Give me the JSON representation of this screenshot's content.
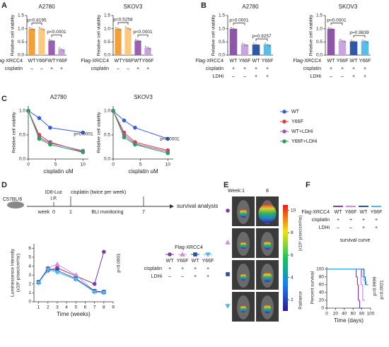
{
  "panels": [
    "A",
    "B",
    "C",
    "D",
    "E",
    "F"
  ],
  "chart_data": [
    {
      "type": "bar",
      "title": "A2780",
      "y_label": "Relative cell viability",
      "category_label": "Flag-XRCC4",
      "categories": [
        "WT",
        "Y66F",
        "WT",
        "Y66F"
      ],
      "values": [
        1.0,
        1.0,
        0.55,
        0.22
      ],
      "colors": [
        "#f2a13a",
        "#f8c97e",
        "#9a5fb3",
        "#c8a3da"
      ],
      "conditions": [
        {
          "label": "cisplatin",
          "values": [
            "–",
            "–",
            "+",
            "+"
          ]
        }
      ],
      "annotations": [
        "p=0.8195",
        "p<0.0001"
      ],
      "ylim": [
        0,
        1.5
      ],
      "yticks": [
        {
          "value": 0,
          "label": "0.0"
        },
        {
          "value": 0.5,
          "label": "0.5"
        },
        {
          "value": 1,
          "label": "1.0"
        },
        {
          "value": 1.5,
          "label": "1.5"
        }
      ]
    },
    {
      "type": "bar",
      "title": "SKOV3",
      "y_label": "Relative cell viability",
      "category_label": "Flag-XRCC4",
      "categories": [
        "WT",
        "Y66F",
        "WT",
        "Y66F"
      ],
      "values": [
        1.0,
        1.02,
        0.55,
        0.28
      ],
      "colors": [
        "#f2a13a",
        "#f8c97e",
        "#9a5fb3",
        "#c8a3da"
      ],
      "conditions": [
        {
          "label": "cisplatin",
          "values": [
            "–",
            "–",
            "+",
            "+"
          ]
        }
      ],
      "annotations": [
        "p=0.5258",
        "p<0.0001"
      ],
      "ylim": [
        0,
        1.5
      ],
      "yticks": [
        {
          "value": 0,
          "label": "0.0"
        },
        {
          "value": 0.5,
          "label": "0.5"
        },
        {
          "value": 1,
          "label": "1.0"
        },
        {
          "value": 1.5,
          "label": "1.5"
        }
      ]
    },
    {
      "type": "bar",
      "title": "A2780",
      "y_label": "Relative cell viability",
      "category_label": "Flag-XRCC4",
      "categories": [
        "WT",
        "Y66F",
        "WT",
        "Y66F"
      ],
      "values": [
        1.0,
        0.4,
        0.4,
        0.4
      ],
      "colors": [
        "#8e56a8",
        "#c9a6dc",
        "#2f58a6",
        "#59bde9"
      ],
      "conditions": [
        {
          "label": "cisplatin",
          "values": [
            "+",
            "+",
            "+",
            "+"
          ]
        },
        {
          "label": "LDHi",
          "values": [
            "–",
            "–",
            "+",
            "+"
          ]
        }
      ],
      "annotations": [
        "p=0.0001",
        "p=0.9257"
      ],
      "ylim": [
        0,
        1.5
      ],
      "yticks": [
        {
          "value": 0,
          "label": "0.0"
        },
        {
          "value": 0.5,
          "label": "0.5"
        },
        {
          "value": 1,
          "label": "1.0"
        },
        {
          "value": 1.5,
          "label": "1.5"
        }
      ]
    },
    {
      "type": "bar",
      "title": "SKOV3",
      "y_label": "Relative cell viability",
      "category_label": "Flag-XRCC4",
      "categories": [
        "WT",
        "Y66F",
        "WT",
        "Y66F"
      ],
      "values": [
        1.0,
        0.55,
        0.52,
        0.53
      ],
      "colors": [
        "#8e56a8",
        "#c9a6dc",
        "#2f58a6",
        "#59bde9"
      ],
      "conditions": [
        {
          "label": "cisplatin",
          "values": [
            "+",
            "+",
            "+",
            "+"
          ]
        },
        {
          "label": "LDHi",
          "values": [
            "–",
            "–",
            "+",
            "+"
          ]
        }
      ],
      "annotations": [
        "p<0.0001",
        "p=0.9839"
      ],
      "ylim": [
        0,
        1.5
      ],
      "yticks": [
        {
          "value": 0,
          "label": "0.0"
        },
        {
          "value": 0.5,
          "label": "0.5"
        },
        {
          "value": 1,
          "label": "1.0"
        },
        {
          "value": 1.5,
          "label": "1.5"
        }
      ]
    },
    {
      "type": "line",
      "title": "A2780",
      "x_label": "cisplatin uM",
      "y_label": "Relative cell viability",
      "x": [
        0,
        2,
        4,
        10
      ],
      "legend": "right",
      "series": [
        {
          "name": "WT",
          "color": "#3a5fcd",
          "values": [
            1.0,
            0.85,
            0.65,
            0.55
          ]
        },
        {
          "name": "Y66F",
          "color": "#e03c3c",
          "values": [
            1.0,
            0.5,
            0.35,
            0.15
          ]
        },
        {
          "name": "WT+LDHi",
          "color": "#9b59b6",
          "values": [
            1.0,
            0.45,
            0.33,
            0.17
          ]
        },
        {
          "name": "Y66F+LDHi",
          "color": "#2e9e5b",
          "values": [
            1.0,
            0.42,
            0.3,
            0.14
          ]
        }
      ],
      "annotations": [
        "p<0.0001"
      ],
      "xlim": [
        0,
        11
      ],
      "xticks": [
        0,
        5,
        10
      ],
      "ylim": [
        0,
        1.1
      ],
      "yticks": [
        {
          "value": 0,
          "label": "0.0"
        },
        {
          "value": 0.5,
          "label": "0.5"
        },
        {
          "value": 1,
          "label": "1.0"
        }
      ]
    },
    {
      "type": "line",
      "title": "SKOV3",
      "x_label": "cisplatin uM",
      "y_label": "Relative cell viability",
      "x": [
        0,
        2,
        4,
        10
      ],
      "series": [
        {
          "color": "#3a5fcd",
          "values": [
            1.0,
            0.8,
            0.65,
            0.42
          ]
        },
        {
          "color": "#e03c3c",
          "values": [
            1.0,
            0.55,
            0.35,
            0.18
          ]
        },
        {
          "color": "#9b59b6",
          "values": [
            1.0,
            0.5,
            0.32,
            0.15
          ]
        },
        {
          "color": "#2e9e5b",
          "values": [
            1.0,
            0.45,
            0.3,
            0.12
          ]
        }
      ],
      "annotations": [
        "p<0.0001"
      ],
      "xlim": [
        0,
        11
      ],
      "xticks": [
        0,
        5,
        10
      ],
      "ylim": [
        0,
        1.1
      ],
      "yticks": [
        {
          "value": 0,
          "label": "0.0"
        },
        {
          "value": 0.5,
          "label": "0.5"
        },
        {
          "value": 1,
          "label": "1.0"
        }
      ]
    },
    {
      "type": "line",
      "x_label": "Time (weeks)",
      "y_label": [
        "Luminescence Intensity",
        "(x10⁶ p/sec/cm²/sr)"
      ],
      "x": [
        1,
        2,
        3,
        5,
        7,
        8
      ],
      "series": [
        {
          "color": "#7b3f9e",
          "marker": "circle",
          "values": [
            2.2,
            3.5,
            3.8,
            2.9,
            2.0,
            5.6
          ]
        },
        {
          "color": "#d48ad4",
          "marker": "triangle",
          "values": [
            2.2,
            3.8,
            4.2,
            3.0,
            1.2,
            1.1
          ]
        },
        {
          "color": "#2c4fa0",
          "marker": "square",
          "values": [
            2.2,
            3.7,
            3.5,
            2.6,
            1.2,
            1.1
          ]
        },
        {
          "color": "#4fb8e8",
          "marker": "triangle-down",
          "values": [
            2.1,
            3.6,
            3.3,
            2.5,
            1.1,
            1.0
          ]
        }
      ],
      "legend_title": "Flag-XRCC4",
      "legend_categories": [
        "WT",
        "Y66F",
        "WT",
        "Y66F"
      ],
      "conditions": [
        {
          "label": "cisplatin",
          "values": [
            "+",
            "+",
            "+",
            "+"
          ]
        },
        {
          "label": "LDHi",
          "values": [
            "–",
            "–",
            "+",
            "+"
          ]
        }
      ],
      "annotations": [
        "p<0.0001"
      ],
      "xlim": [
        0.5,
        9
      ],
      "xticks": [
        1,
        2,
        3,
        4,
        5,
        6,
        7,
        8,
        9
      ],
      "ylim": [
        0,
        6.5
      ],
      "yticks": [
        0,
        1,
        2,
        3,
        4,
        5,
        6
      ]
    },
    {
      "type": "line",
      "step": true,
      "x_label": "Time (days)",
      "y_label": "Percent survival",
      "category_label": "Flag-XRCC4",
      "categories": [
        "WT",
        "Y66F",
        "WT",
        "Y66F"
      ],
      "conditions": [
        {
          "label": "cisplatin",
          "values": [
            "+",
            "+",
            "+",
            "+"
          ]
        },
        {
          "label": "LDHi",
          "values": [
            "–",
            "–",
            "+",
            "+"
          ]
        }
      ],
      "caption": "survival curve",
      "series": [
        {
          "color": "#7b3f9e",
          "x": [
            0,
            65,
            67,
            70,
            72,
            75
          ],
          "values": [
            100,
            100,
            80,
            60,
            20,
            0
          ]
        },
        {
          "color": "#d48ad4",
          "x": [
            0,
            78,
            82
          ],
          "values": [
            100,
            60,
            20
          ]
        },
        {
          "color": "#2c4fa0",
          "x": [
            0,
            85,
            88
          ],
          "values": [
            100,
            80,
            60
          ]
        },
        {
          "color": "#4fb8e8",
          "x": [
            0,
            80,
            85,
            90
          ],
          "values": [
            100,
            80,
            70,
            60
          ]
        }
      ],
      "annotations": [
        "p=0.9999",
        "p=0.0021"
      ],
      "xlim": [
        0,
        100
      ],
      "xticks": [
        0,
        20,
        40,
        60,
        80,
        100
      ],
      "ylim": [
        0,
        105
      ],
      "yticks": [
        0,
        20,
        40,
        60,
        80,
        100
      ]
    }
  ],
  "schematic": {
    "mouse": "C57BL/6",
    "injection": [
      "ID8-Luc",
      "I.P."
    ],
    "treatment": "cisplatin (twice per week)",
    "week_label": "week",
    "weeks": [
      "0",
      "1",
      "7"
    ],
    "monitoring": "BLI monitoring",
    "endpoint": "survival analysis"
  },
  "imaging": {
    "week_label": "Week:",
    "weeks": [
      "1",
      "8"
    ],
    "colorbar": {
      "lim": [
        1,
        10.5
      ],
      "ticks": [
        2,
        4,
        6,
        8,
        10
      ],
      "label": "Radiance",
      "unit": "(x10⁶ p/sec/cm²/sr)"
    }
  }
}
